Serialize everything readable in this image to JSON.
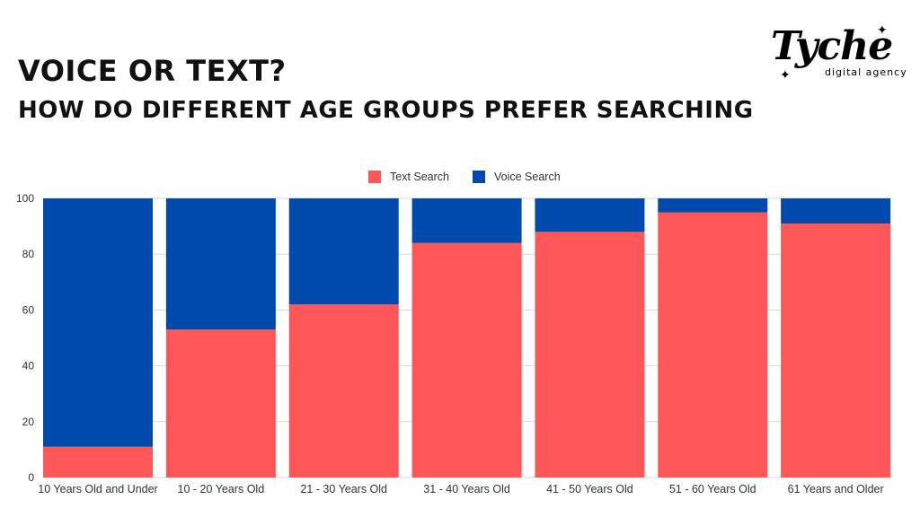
{
  "header": {
    "title": "VOICE OR TEXT?",
    "subtitle": "HOW DO DIFFERENT AGE GROUPS PREFER SEARCHING"
  },
  "logo": {
    "wordmark": "Tyche",
    "tagline": "digital agency"
  },
  "chart_data": {
    "type": "bar",
    "stacked": true,
    "title": "",
    "xlabel": "",
    "ylabel": "",
    "ylim": [
      0,
      100
    ],
    "yticks": [
      0,
      20,
      40,
      60,
      80,
      100
    ],
    "grid": true,
    "legend_position": "top-center",
    "categories": [
      "10 Years Old and Under",
      "10 - 20 Years Old",
      "21 - 30 Years Old",
      "31 - 40 Years Old",
      "41 - 50 Years Old",
      "51 - 60 Years Old",
      "61 Years and Older"
    ],
    "series": [
      {
        "name": "Text Search",
        "color": "#ff5757",
        "values": [
          11,
          53,
          62,
          84,
          88,
          95,
          91
        ]
      },
      {
        "name": "Voice Search",
        "color": "#004aad",
        "values": [
          89,
          47,
          38,
          16,
          12,
          5,
          9
        ]
      }
    ]
  }
}
